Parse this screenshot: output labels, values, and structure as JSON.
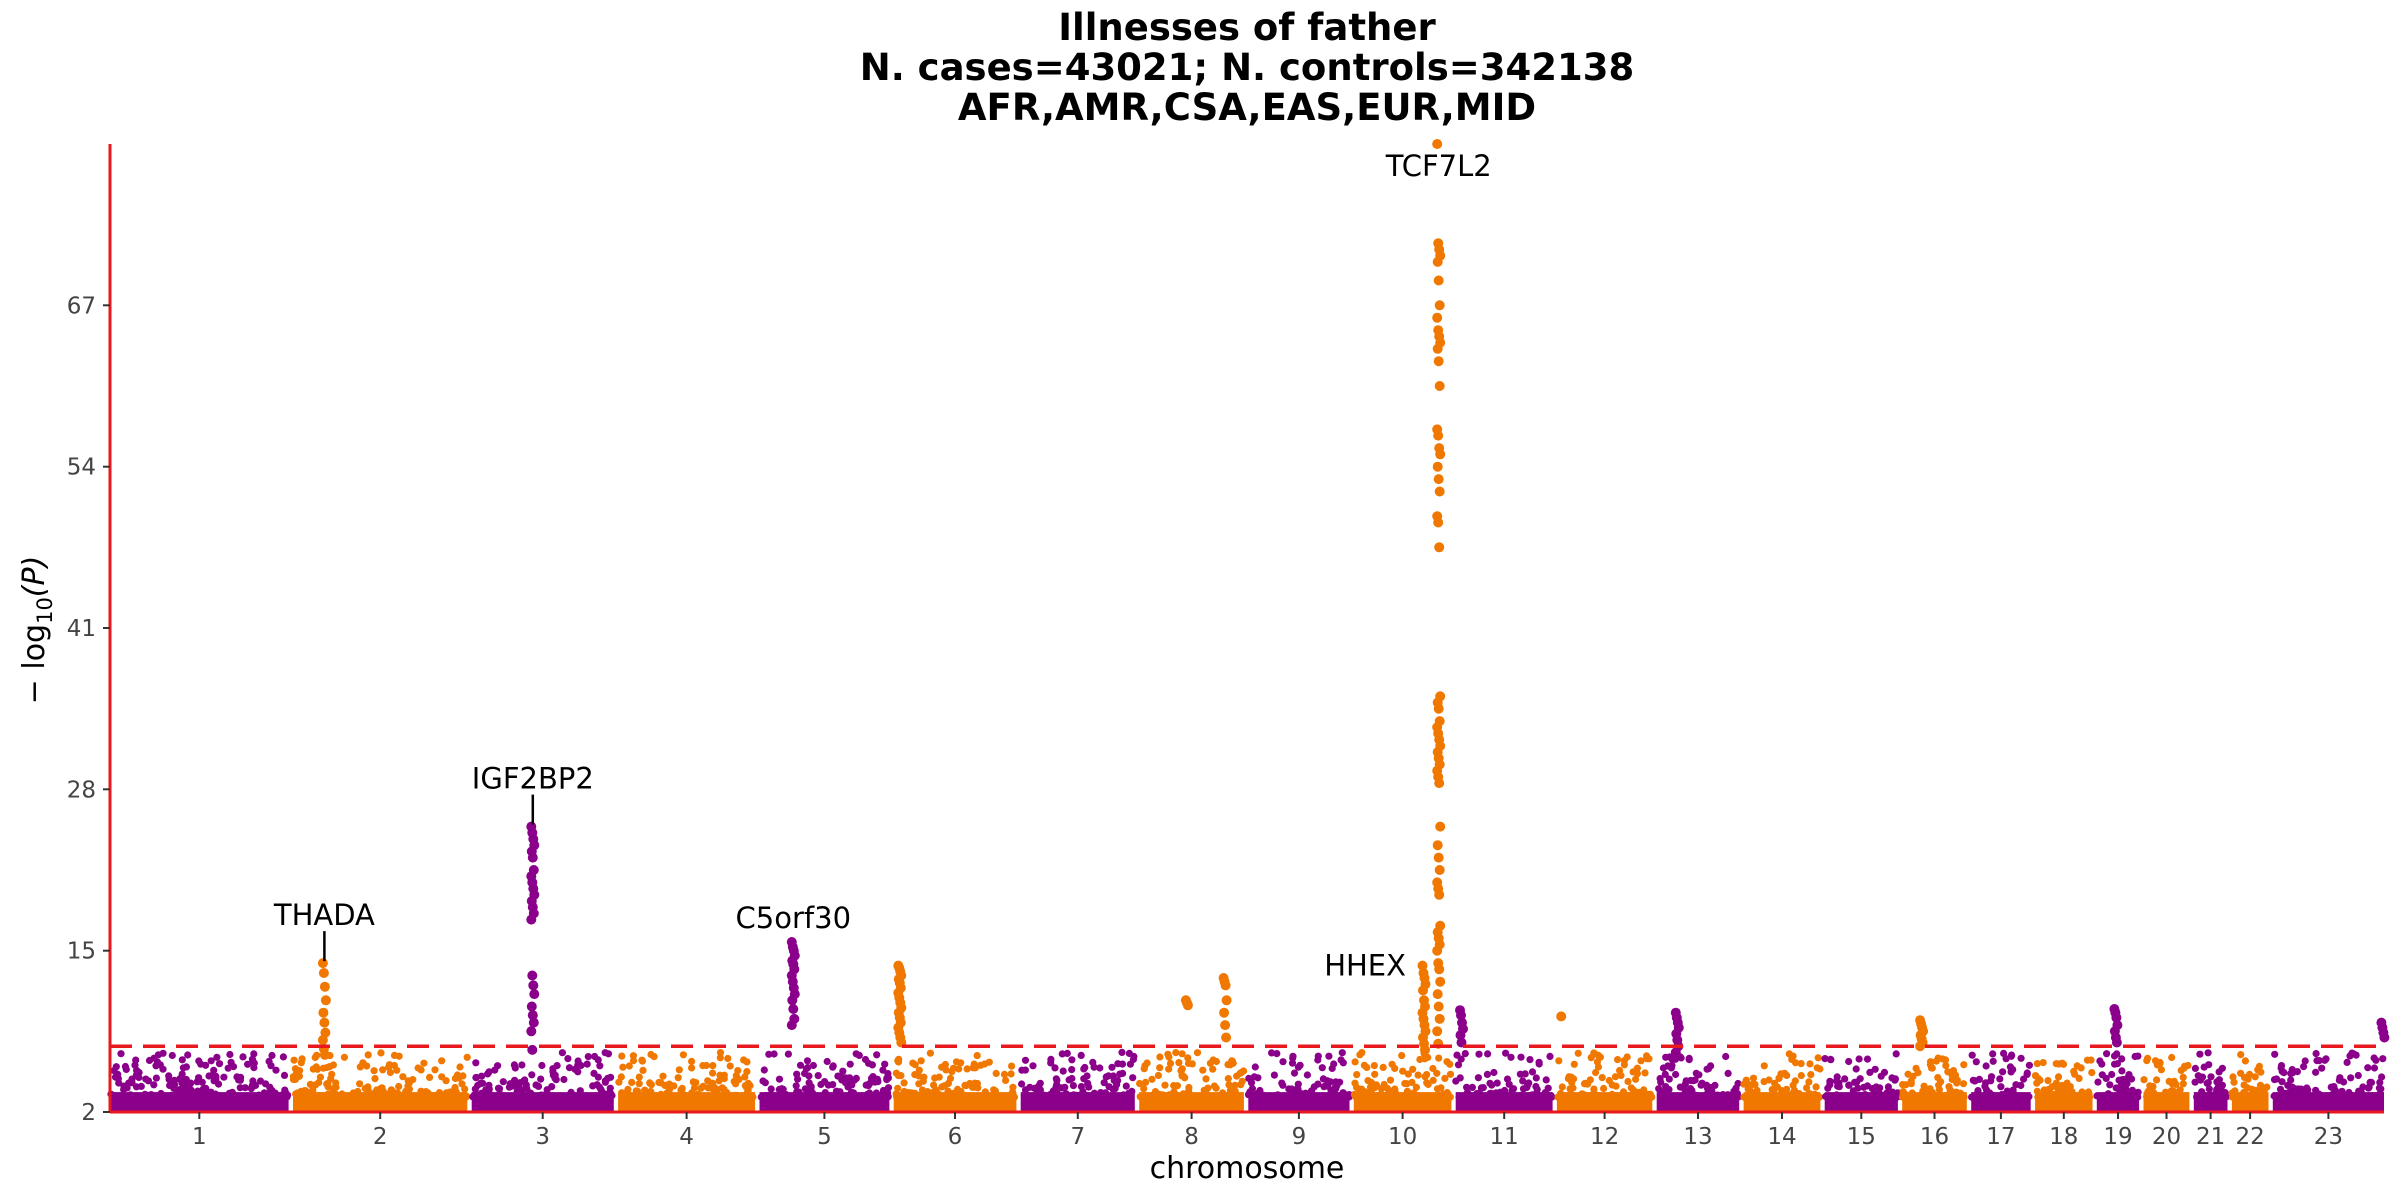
{
  "chart_data": {
    "type": "scatter",
    "subtype": "manhattan",
    "title_lines": [
      "Illnesses of father",
      "N. cases=43021; N. controls=342138",
      "AFR,AMR,CSA,EAS,EUR,MID"
    ],
    "xlabel": "chromosome",
    "ylabel_main": "− log",
    "ylabel_sub": "10",
    "ylabel_tail": "(P)",
    "ylim": [
      2,
      80
    ],
    "yticks": [
      2,
      15,
      28,
      41,
      54,
      67
    ],
    "significance_threshold": 7.3,
    "threshold_color": "#e8191c",
    "axis_color": "#e8191c",
    "colors": [
      "#8b008b",
      "#f07800"
    ],
    "chromosomes": [
      {
        "label": "1",
        "length": 249
      },
      {
        "label": "2",
        "length": 243
      },
      {
        "label": "3",
        "length": 198
      },
      {
        "label": "4",
        "length": 191
      },
      {
        "label": "5",
        "length": 181
      },
      {
        "label": "6",
        "length": 171
      },
      {
        "label": "7",
        "length": 159
      },
      {
        "label": "8",
        "length": 146
      },
      {
        "label": "9",
        "length": 141
      },
      {
        "label": "10",
        "length": 136
      },
      {
        "label": "11",
        "length": 135
      },
      {
        "label": "12",
        "length": 133
      },
      {
        "label": "13",
        "length": 115
      },
      {
        "label": "14",
        "length": 107
      },
      {
        "label": "15",
        "length": 102
      },
      {
        "label": "16",
        "length": 90
      },
      {
        "label": "17",
        "length": 83
      },
      {
        "label": "18",
        "length": 80
      },
      {
        "label": "19",
        "length": 59
      },
      {
        "label": "20",
        "length": 64
      },
      {
        "label": "21",
        "length": 47
      },
      {
        "label": "22",
        "length": 51
      },
      {
        "label": "23",
        "length": 155
      }
    ],
    "peaks": [
      {
        "chr": "2",
        "pos": 0.18,
        "values": [
          14.0,
          13.2,
          12.1,
          11.0,
          10.0,
          9.2,
          8.4,
          7.8,
          7.1,
          6.6
        ]
      },
      {
        "chr": "3",
        "pos": 0.43,
        "values": [
          25.0,
          24.5,
          24.0,
          23.5,
          23.0,
          22.5,
          21.5,
          21.0,
          20.5,
          20.0,
          19.5,
          19.0,
          18.5,
          18.0,
          17.5,
          13.0,
          12.2,
          11.5,
          10.5,
          9.8,
          9.2,
          8.5,
          7.0
        ]
      },
      {
        "chr": "5",
        "pos": 0.26,
        "values": [
          15.7,
          15.3,
          15.0,
          14.6,
          14.2,
          13.9,
          13.5,
          13.0,
          12.5,
          12.0,
          11.5,
          11.0,
          10.3,
          9.5,
          9.0
        ]
      },
      {
        "chr": "6",
        "pos": 0.05,
        "values": [
          13.8,
          13.6,
          13.3,
          13.0,
          12.7,
          12.4,
          12.0,
          11.6,
          11.2,
          10.8,
          10.4,
          10.0,
          9.6,
          9.2,
          8.8,
          8.4,
          8.0,
          7.6
        ]
      },
      {
        "chr": "8",
        "pos": 0.46,
        "values": [
          11.0,
          10.8,
          10.6
        ]
      },
      {
        "chr": "8",
        "pos": 0.82,
        "values": [
          12.8,
          12.5,
          12.2,
          11.0,
          10.0,
          9.0,
          8.0
        ]
      },
      {
        "chr": "10",
        "pos": 0.72,
        "values": [
          13.8,
          13.2,
          12.8,
          12.3,
          11.8,
          11.0,
          10.5,
          10.0,
          9.5,
          9.0,
          8.5,
          8.0,
          7.5,
          7.0
        ]
      },
      {
        "chr": "10",
        "pos": 0.87,
        "values": [
          80.0,
          72.0,
          71.5,
          71.0,
          70.5,
          69.0,
          67.0,
          66.0,
          65.0,
          64.5,
          64.0,
          63.5,
          62.5,
          60.5,
          57.0,
          56.5,
          55.5,
          55.0,
          54.0,
          53.0,
          52.0,
          50.0,
          49.5,
          47.5,
          35.5,
          35.0,
          34.5,
          33.5,
          33.0,
          32.5,
          32.0,
          31.5,
          31.0,
          30.5,
          30.0,
          29.5,
          29.0,
          28.5,
          25.0,
          23.5,
          22.5,
          21.5,
          20.5,
          20.0,
          19.5,
          17.0,
          16.5,
          16.0,
          15.5,
          15.0,
          14.0,
          13.5,
          12.5,
          11.5,
          10.5,
          9.5,
          8.5,
          7.5
        ]
      },
      {
        "chr": "11",
        "pos": 0.06,
        "values": [
          10.2,
          9.8,
          9.2,
          8.7,
          8.2,
          7.6
        ]
      },
      {
        "chr": "12",
        "pos": 0.06,
        "values": [
          9.7
        ]
      },
      {
        "chr": "13",
        "pos": 0.25,
        "values": [
          10.0,
          9.6,
          9.2,
          8.8,
          8.3,
          7.8,
          7.3,
          6.8
        ]
      },
      {
        "chr": "16",
        "pos": 0.3,
        "values": [
          9.4,
          9.1,
          8.8,
          8.5,
          8.2,
          7.9,
          7.6,
          7.3
        ]
      },
      {
        "chr": "19",
        "pos": 0.45,
        "values": [
          10.3,
          10.0,
          9.6,
          9.0,
          8.5,
          8.0,
          7.6
        ]
      },
      {
        "chr": "23",
        "pos": 0.99,
        "values": [
          9.2,
          8.8,
          8.4,
          8.0
        ]
      }
    ],
    "annotations": [
      {
        "label": "TCF7L2",
        "chr": "10",
        "pos": 0.87,
        "value": 80.0,
        "leader": false,
        "anchor": "below"
      },
      {
        "label": "IGF2BP2",
        "chr": "3",
        "pos": 0.43,
        "value": 25.0,
        "leader": true,
        "anchor": "above"
      },
      {
        "label": "THADA",
        "chr": "2",
        "pos": 0.18,
        "value": 14.0,
        "leader": true,
        "anchor": "above"
      },
      {
        "label": "C5orf30",
        "chr": "5",
        "pos": 0.26,
        "value": 15.7,
        "leader": false,
        "anchor": "above"
      },
      {
        "label": "HHEX",
        "chr": "10",
        "pos": 0.72,
        "value": 13.8,
        "leader": false,
        "anchor": "left"
      }
    ]
  }
}
